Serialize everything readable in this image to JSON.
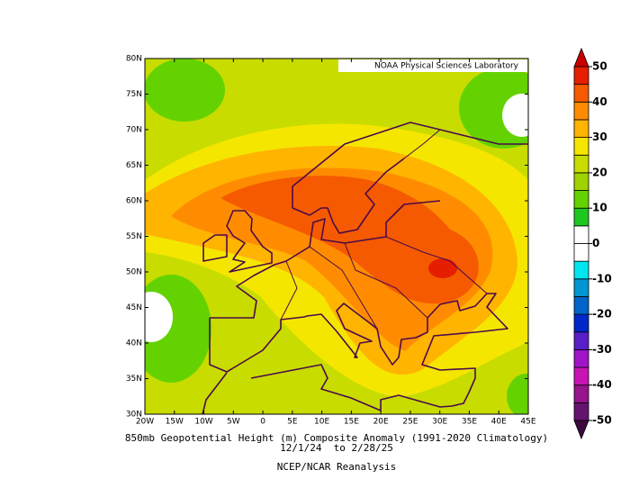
{
  "map_data": {
    "credit": "NOAA Physical Sciences Laboratory",
    "title": "850mb Geopotential Height (m) Composite Anomaly (1991-2020 Climatology)",
    "period": "12/1/24  to 2/28/25",
    "source": "NCEP/NCAR Reanalysis",
    "lonlim": [
      -20,
      45
    ],
    "latlim": [
      30,
      80
    ],
    "lonticks": [
      {
        "value": -20,
        "label": "20W"
      },
      {
        "value": -15,
        "label": "15W"
      },
      {
        "value": -10,
        "label": "10W"
      },
      {
        "value": -5,
        "label": "5W"
      },
      0,
      {
        "value": 5,
        "label": "5E"
      },
      {
        "value": 10,
        "label": "10E"
      },
      {
        "value": 15,
        "label": "15E"
      },
      {
        "value": 20,
        "label": "20E"
      },
      {
        "value": 25,
        "label": "25E"
      },
      {
        "value": 30,
        "label": "30E"
      },
      {
        "value": 35,
        "label": "35E"
      },
      {
        "value": 40,
        "label": "40E"
      },
      {
        "value": 45,
        "label": "45E"
      }
    ],
    "latticks": [
      {
        "value": 30,
        "label": "30N"
      },
      {
        "value": 35,
        "label": "35N"
      },
      {
        "value": 40,
        "label": "40N"
      },
      {
        "value": 45,
        "label": "45N"
      },
      {
        "value": 50,
        "label": "50N"
      },
      {
        "value": 55,
        "label": "55N"
      },
      {
        "value": 60,
        "label": "60N"
      },
      {
        "value": 65,
        "label": "65N"
      },
      {
        "value": 70,
        "label": "70N"
      },
      {
        "value": 75,
        "label": "75N"
      },
      {
        "value": 80,
        "label": "80N"
      }
    ],
    "colorbar": {
      "levels": [
        -50,
        -45,
        -40,
        -35,
        -30,
        -25,
        -20,
        -15,
        -10,
        -5,
        0,
        5,
        10,
        15,
        20,
        25,
        30,
        35,
        40,
        45,
        50
      ],
      "colors": [
        "#64146e",
        "#96148c",
        "#c814b4",
        "#a014c8",
        "#5a1ec8",
        "#0028c8",
        "#0064c8",
        "#0096d2",
        "#00e6f0",
        "#ffffff",
        "#ffffff",
        "#1ec81e",
        "#64d200",
        "#a0d200",
        "#c8dc00",
        "#f5e600",
        "#ffb400",
        "#ff8c00",
        "#f55a00",
        "#e61e00"
      ],
      "under_color": "#3c0a3c",
      "over_color": "#c80000",
      "ticks": [
        50,
        40,
        30,
        20,
        10,
        0,
        -10,
        -20,
        -30,
        -40,
        -50
      ]
    }
  }
}
